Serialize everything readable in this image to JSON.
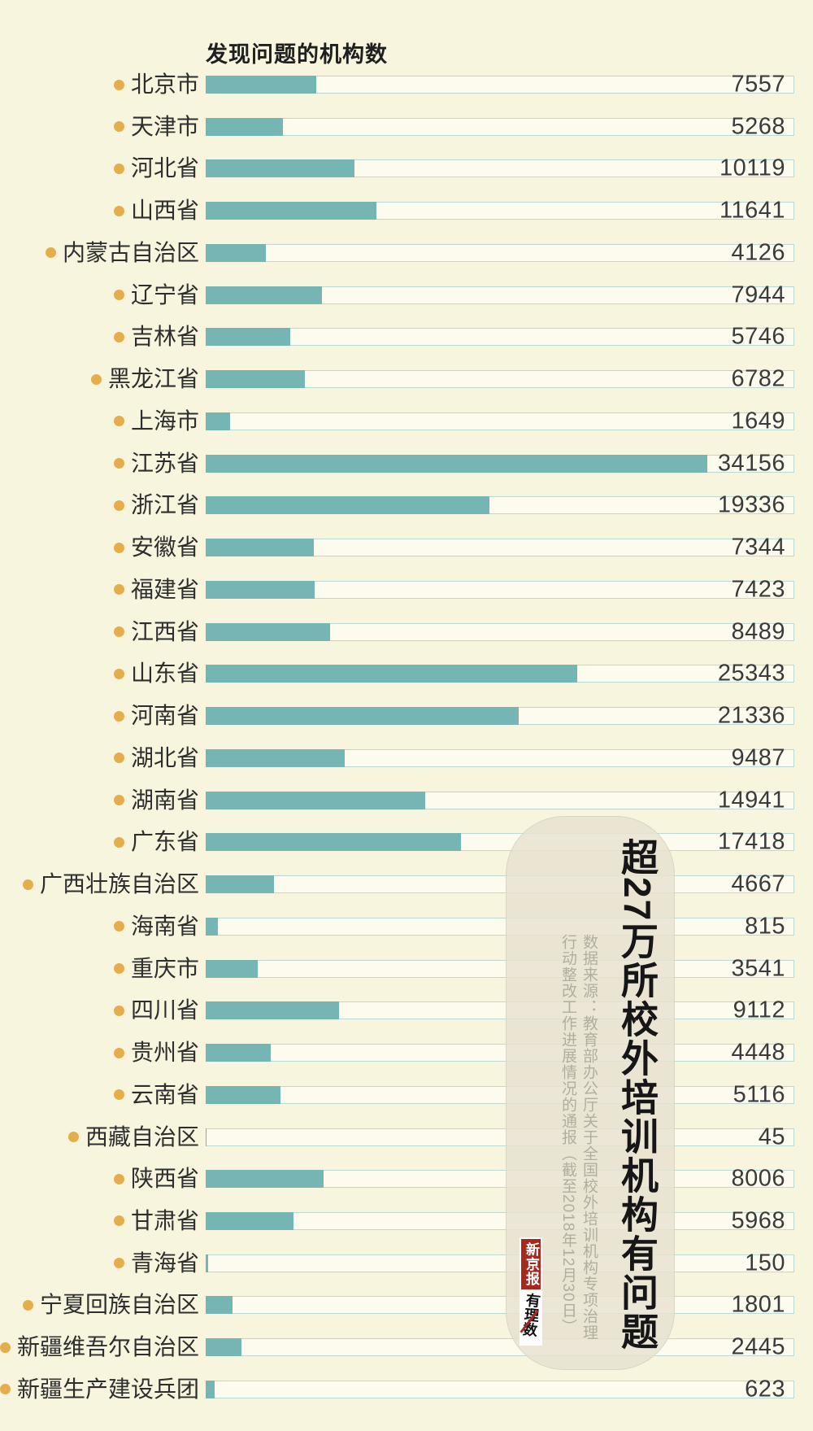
{
  "header": {
    "title": "发现问题的机构数"
  },
  "chart_data": {
    "type": "bar",
    "orientation": "horizontal",
    "title": "发现问题的机构数",
    "xlabel": "",
    "ylabel": "",
    "xlim": [
      0,
      40000
    ],
    "grid": false,
    "value_labels": "inside-track-right",
    "categories": [
      "北京市",
      "天津市",
      "河北省",
      "山西省",
      "内蒙古自治区",
      "辽宁省",
      "吉林省",
      "黑龙江省",
      "上海市",
      "江苏省",
      "浙江省",
      "安徽省",
      "福建省",
      "江西省",
      "山东省",
      "河南省",
      "湖北省",
      "湖南省",
      "广东省",
      "广西壮族自治区",
      "海南省",
      "重庆市",
      "四川省",
      "贵州省",
      "云南省",
      "西藏自治区",
      "陕西省",
      "甘肃省",
      "青海省",
      "宁夏回族自治区",
      "新疆维吾尔自治区",
      "新疆生产建设兵团"
    ],
    "values": [
      7557,
      5268,
      10119,
      11641,
      4126,
      7944,
      5746,
      6782,
      1649,
      34156,
      19336,
      7344,
      7423,
      8489,
      25343,
      21336,
      9487,
      14941,
      17418,
      4667,
      815,
      3541,
      9112,
      4448,
      5116,
      45,
      8006,
      5968,
      150,
      1801,
      2445,
      623
    ],
    "colors": {
      "background": "#f7f5de",
      "bar_fill": "#75b6b4",
      "track_fill": "#fcfbee",
      "track_border": "#bcd9d3",
      "bullet": "#e5ae4c",
      "label_text": "#2e2e2e",
      "value_text": "#3b3b3b"
    }
  },
  "overlay": {
    "headline": "超27万所校外培训机构有问题",
    "source_line1": "数据来源：教育部办公厅关于全国校外培训机构专项治理",
    "source_line2": "行动整改工作进展情况的通报（截至2018年12月30日）",
    "panel_color": "#e7e2d0"
  },
  "logo": {
    "newspaper": "新京报",
    "column": "有理数",
    "red": "#a6291f"
  }
}
